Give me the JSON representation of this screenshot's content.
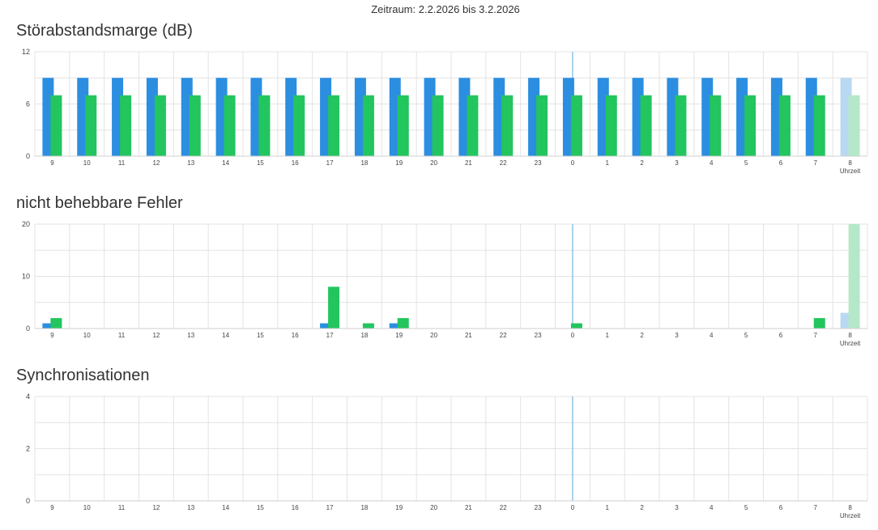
{
  "header": {
    "zeitraum": "Zeitraum: 2.2.2026 bis 3.2.2026"
  },
  "colors": {
    "blue": "#2b8ee0",
    "green": "#22c55e",
    "blue_faded": "#b9d9f2",
    "green_faded": "#b5e8c8",
    "grid": "#e3e3e3",
    "marker": "#8fc3e8"
  },
  "chart_data": [
    {
      "type": "bar",
      "title": "Störabstandsmarge (dB)",
      "categories": [
        "9",
        "10",
        "11",
        "12",
        "13",
        "14",
        "15",
        "16",
        "17",
        "18",
        "19",
        "20",
        "21",
        "22",
        "23",
        "0",
        "1",
        "2",
        "3",
        "4",
        "5",
        "6",
        "7",
        "8"
      ],
      "xlabel": "Uhrzeit",
      "ylim": [
        0,
        12
      ],
      "yticks": [
        0,
        6,
        12
      ],
      "marker_category": "0",
      "faded_last": true,
      "series": [
        {
          "values": [
            9,
            9,
            9,
            9,
            9,
            9,
            9,
            9,
            9,
            9,
            9,
            9,
            9,
            9,
            9,
            9,
            9,
            9,
            9,
            9,
            9,
            9,
            9,
            9
          ]
        },
        {
          "values": [
            7,
            7,
            7,
            7,
            7,
            7,
            7,
            7,
            7,
            7,
            7,
            7,
            7,
            7,
            7,
            7,
            7,
            7,
            7,
            7,
            7,
            7,
            7,
            7
          ]
        }
      ],
      "grid": true
    },
    {
      "type": "bar",
      "title": "nicht behebbare Fehler",
      "categories": [
        "9",
        "10",
        "11",
        "12",
        "13",
        "14",
        "15",
        "16",
        "17",
        "18",
        "19",
        "20",
        "21",
        "22",
        "23",
        "0",
        "1",
        "2",
        "3",
        "4",
        "5",
        "6",
        "7",
        "8"
      ],
      "xlabel": "Uhrzeit",
      "ylim": [
        0,
        20
      ],
      "yticks": [
        0,
        10,
        20
      ],
      "marker_category": "0",
      "faded_last": true,
      "series": [
        {
          "values": [
            1,
            0,
            0,
            0,
            0,
            0,
            0,
            0,
            1,
            0,
            1,
            0,
            0,
            0,
            0,
            0,
            0,
            0,
            0,
            0,
            0,
            0,
            0,
            3
          ]
        },
        {
          "values": [
            2,
            0,
            0,
            0,
            0,
            0,
            0,
            0,
            8,
            1,
            2,
            0,
            0,
            0,
            0,
            1,
            0,
            0,
            0,
            0,
            0,
            0,
            2,
            20
          ]
        }
      ],
      "grid": true
    },
    {
      "type": "bar",
      "title": "Synchronisationen",
      "categories": [
        "9",
        "10",
        "11",
        "12",
        "13",
        "14",
        "15",
        "16",
        "17",
        "18",
        "19",
        "20",
        "21",
        "22",
        "23",
        "0",
        "1",
        "2",
        "3",
        "4",
        "5",
        "6",
        "7",
        "8"
      ],
      "xlabel": "Uhrzeit",
      "ylim": [
        0,
        4
      ],
      "yticks": [
        0,
        2,
        4
      ],
      "marker_category": "0",
      "faded_last": true,
      "series": [
        {
          "values": [
            0,
            0,
            0,
            0,
            0,
            0,
            0,
            0,
            0,
            0,
            0,
            0,
            0,
            0,
            0,
            0,
            0,
            0,
            0,
            0,
            0,
            0,
            0,
            0
          ]
        },
        {
          "values": [
            0,
            0,
            0,
            0,
            0,
            0,
            0,
            0,
            0,
            0,
            0,
            0,
            0,
            0,
            0,
            0,
            0,
            0,
            0,
            0,
            0,
            0,
            0,
            0
          ]
        }
      ],
      "grid": true
    }
  ]
}
